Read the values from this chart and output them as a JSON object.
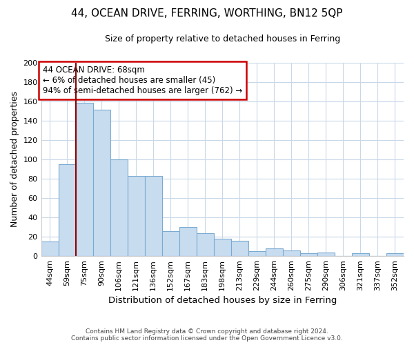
{
  "title": "44, OCEAN DRIVE, FERRING, WORTHING, BN12 5QP",
  "subtitle": "Size of property relative to detached houses in Ferring",
  "xlabel": "Distribution of detached houses by size in Ferring",
  "ylabel": "Number of detached properties",
  "bar_color": "#c8dcf0",
  "bar_edge_color": "#7aaad0",
  "categories": [
    "44sqm",
    "59sqm",
    "75sqm",
    "90sqm",
    "106sqm",
    "121sqm",
    "136sqm",
    "152sqm",
    "167sqm",
    "183sqm",
    "198sqm",
    "213sqm",
    "229sqm",
    "244sqm",
    "260sqm",
    "275sqm",
    "290sqm",
    "306sqm",
    "321sqm",
    "337sqm",
    "352sqm"
  ],
  "values": [
    15,
    95,
    158,
    151,
    100,
    83,
    83,
    26,
    30,
    24,
    18,
    16,
    5,
    8,
    6,
    3,
    4,
    0,
    3,
    0,
    3
  ],
  "ylim": [
    0,
    200
  ],
  "yticks": [
    0,
    20,
    40,
    60,
    80,
    100,
    120,
    140,
    160,
    180,
    200
  ],
  "marker_color": "#8b0000",
  "annotation_title": "44 OCEAN DRIVE: 68sqm",
  "annotation_line1": "← 6% of detached houses are smaller (45)",
  "annotation_line2": "94% of semi-detached houses are larger (762) →",
  "annotation_box_color": "#ffffff",
  "annotation_box_edge": "#cc0000",
  "footer_line1": "Contains HM Land Registry data © Crown copyright and database right 2024.",
  "footer_line2": "Contains public sector information licensed under the Open Government Licence v3.0.",
  "background_color": "#ffffff",
  "grid_color": "#c8d8e8"
}
